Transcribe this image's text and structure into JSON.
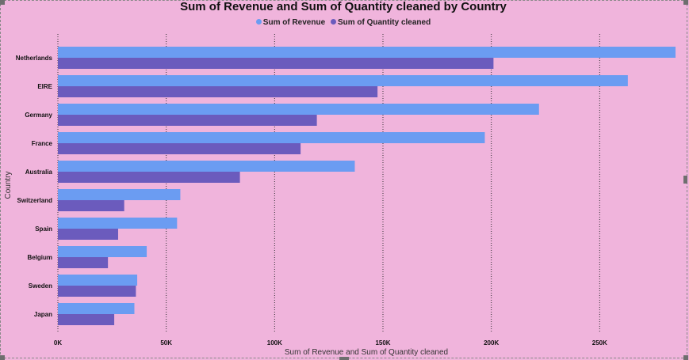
{
  "chart_data": {
    "type": "bar",
    "orientation": "horizontal",
    "title": "Sum of Revenue and Sum of Quantity cleaned by Country",
    "xlabel": "Sum of Revenue and Sum of Quantity cleaned",
    "ylabel": "Country",
    "categories": [
      "Netherlands",
      "EIRE",
      "Germany",
      "France",
      "Australia",
      "Switzerland",
      "Spain",
      "Belgium",
      "Sweden",
      "Japan"
    ],
    "series": [
      {
        "name": "Sum of Revenue",
        "color": "#6b9cf2",
        "values": [
          285000,
          263000,
          222000,
          197000,
          137000,
          56500,
          55000,
          41000,
          36600,
          35300
        ]
      },
      {
        "name": "Sum of Quantity cleaned",
        "color": "#6b5bbd",
        "values": [
          201000,
          147500,
          119500,
          112000,
          84000,
          30600,
          27800,
          23100,
          36000,
          26000
        ]
      }
    ],
    "xlim": [
      0,
      285000
    ],
    "xticks": [
      0,
      50000,
      100000,
      150000,
      200000,
      250000
    ],
    "xtick_labels": [
      "0K",
      "50K",
      "100K",
      "150K",
      "200K",
      "250K"
    ],
    "grid": "vertical-dotted",
    "legend_position": "top-center"
  }
}
